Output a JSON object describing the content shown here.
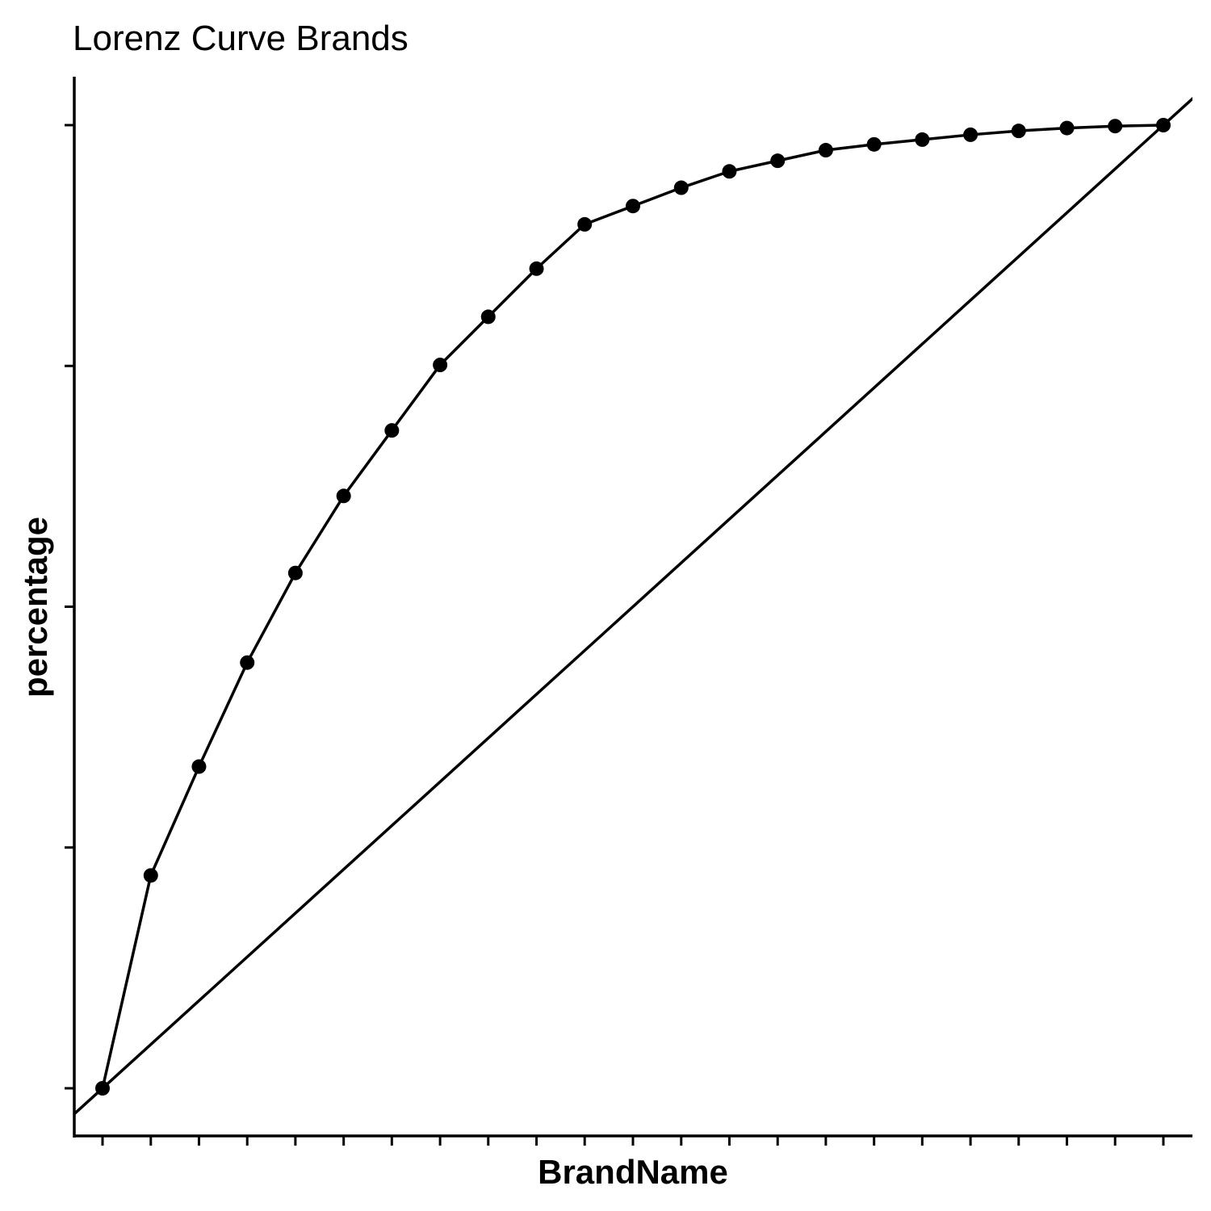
{
  "chart_data": {
    "type": "line",
    "title": "Lorenz Curve Brands",
    "xlabel": "BrandName",
    "ylabel": "percentage",
    "x_tick_labels_shown": false,
    "y_tick_labels_shown": false,
    "x_count": 23,
    "ylim": [
      -0.026,
      1.042
    ],
    "y_ticks": [
      0,
      0.25,
      0.5,
      0.75,
      1.0
    ],
    "grid": false,
    "legend": "none",
    "reference_line": {
      "type": "equality-diagonal",
      "from": [
        0,
        0
      ],
      "to": [
        1,
        1
      ]
    },
    "series": [
      {
        "x": [
          0,
          0.0455,
          0.0909,
          0.1364,
          0.1818,
          0.2273,
          0.2727,
          0.3182,
          0.3636,
          0.4091,
          0.4545,
          0.5,
          0.5455,
          0.5909,
          0.6364,
          0.6818,
          0.7273,
          0.7727,
          0.8182,
          0.8636,
          0.9091,
          0.9545,
          1.0
        ],
        "values": [
          0,
          0.221,
          0.334,
          0.442,
          0.535,
          0.615,
          0.683,
          0.751,
          0.801,
          0.851,
          0.897,
          0.916,
          0.935,
          0.952,
          0.963,
          0.974,
          0.98,
          0.985,
          0.99,
          0.994,
          0.997,
          0.999,
          1.0
        ]
      }
    ],
    "colors": {
      "line": "#000000",
      "points": "#000000",
      "background": "#ffffff"
    }
  }
}
